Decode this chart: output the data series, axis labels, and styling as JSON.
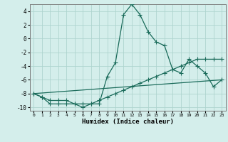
{
  "xlabel": "Humidex (Indice chaleur)",
  "background_color": "#d4eeeb",
  "grid_color": "#aed4cf",
  "line_color": "#1a6b5a",
  "xlim": [
    -0.5,
    23.5
  ],
  "ylim": [
    -10.5,
    5.0
  ],
  "xticks": [
    0,
    1,
    2,
    3,
    4,
    5,
    6,
    7,
    8,
    9,
    10,
    11,
    12,
    13,
    14,
    15,
    16,
    17,
    18,
    19,
    20,
    21,
    22,
    23
  ],
  "yticks": [
    -10,
    -8,
    -6,
    -4,
    -2,
    0,
    2,
    4
  ],
  "series1_x": [
    0,
    1,
    2,
    3,
    4,
    5,
    6,
    7,
    8,
    9,
    10,
    11,
    12,
    13,
    14,
    15,
    16,
    17,
    18,
    19,
    20,
    21,
    22,
    23
  ],
  "series1_y": [
    -8,
    -8.5,
    -9.5,
    -9.5,
    -9.5,
    -9.5,
    -10,
    -9.5,
    -9.5,
    -5.5,
    -3.5,
    3.5,
    5,
    3.5,
    1,
    -0.5,
    -1,
    -4.5,
    -5,
    -3,
    -4,
    -5,
    -7,
    -6
  ],
  "series2_x": [
    0,
    1,
    2,
    3,
    4,
    5,
    6,
    7,
    8,
    9,
    10,
    11,
    12,
    13,
    14,
    15,
    16,
    17,
    18,
    19,
    20,
    21,
    22,
    23
  ],
  "series2_y": [
    -8,
    -8.5,
    -9,
    -9,
    -9,
    -9.5,
    -9.5,
    -9.5,
    -9,
    -8.5,
    -8,
    -7.5,
    -7,
    -6.5,
    -6,
    -5.5,
    -5,
    -4.5,
    -4,
    -3.5,
    -3,
    -3,
    -3,
    -3
  ],
  "series3_x": [
    0,
    23
  ],
  "series3_y": [
    -8,
    -6
  ],
  "marker": "+",
  "markersize": 4,
  "linewidth": 0.9
}
